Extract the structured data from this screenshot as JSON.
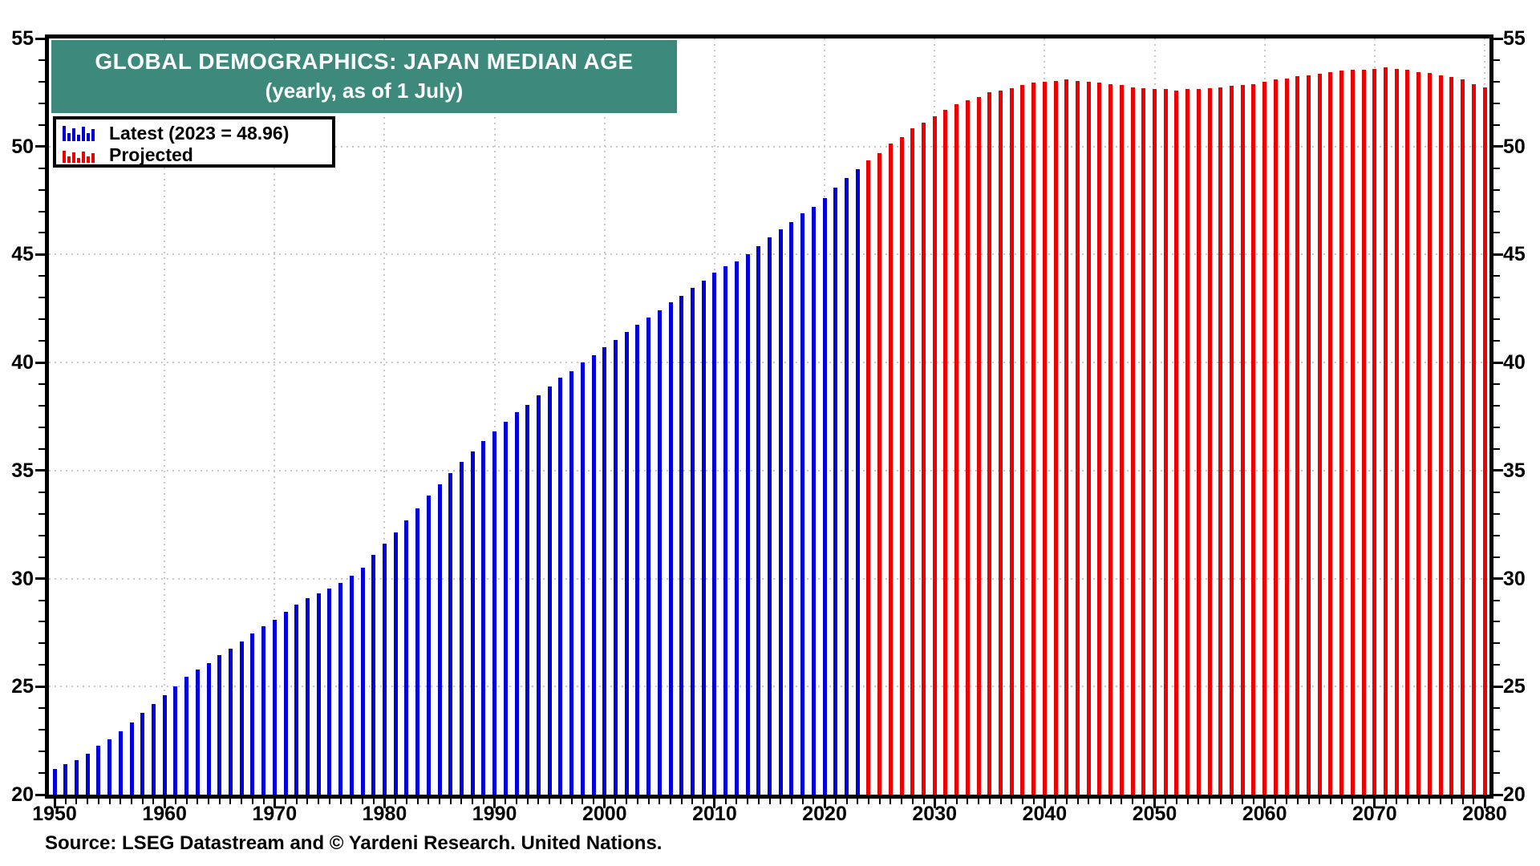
{
  "header": {
    "title": "GLOBAL DEMOGRAPHICS: JAPAN MEDIAN AGE",
    "subtitle": "(yearly, as of 1 July)"
  },
  "legend": {
    "items": [
      {
        "label": "Latest (2023 = 48.96)",
        "color": "#0000dd",
        "icon": "mini-bar-chart-icon"
      },
      {
        "label": "Projected",
        "color": "#ee0000",
        "icon": "mini-bar-chart-icon"
      }
    ]
  },
  "source": "Source: LSEG Datastream and © Yardeni Research. United Nations.",
  "colors": {
    "latest_bar": "#0000dd",
    "projected_bar": "#ee0000",
    "title_background": "#3d8a7d",
    "title_text": "#ffffff",
    "gridline": "#c8c8c8",
    "axis": "#000000"
  },
  "chart_data": {
    "type": "bar",
    "title": "GLOBAL DEMOGRAPHICS: JAPAN MEDIAN AGE",
    "subtitle": "(yearly, as of 1 July)",
    "frequency": "yearly",
    "x_start_year": 1950,
    "x_end_year": 2080,
    "x_major_interval": 10,
    "x_tick_labels": [
      "1950",
      "1960",
      "1970",
      "1980",
      "1990",
      "2000",
      "2010",
      "2020",
      "2030",
      "2040",
      "2050",
      "2060",
      "2070",
      "2080"
    ],
    "ylim": [
      20,
      55
    ],
    "y_major_interval": 5,
    "y_minor_interval": 1,
    "y_tick_labels": [
      "20",
      "25",
      "30",
      "35",
      "40",
      "45",
      "50",
      "55"
    ],
    "grid": true,
    "legend_position": "top-left",
    "series": [
      {
        "name": "Latest (2023 = 48.96)",
        "color": "#0000dd",
        "start_year": 1950,
        "values": [
          21.2,
          21.4,
          21.6,
          21.9,
          22.25,
          22.55,
          22.95,
          23.35,
          23.8,
          24.2,
          24.6,
          25.0,
          25.45,
          25.8,
          26.1,
          26.45,
          26.75,
          27.1,
          27.45,
          27.8,
          28.1,
          28.45,
          28.8,
          29.1,
          29.3,
          29.55,
          29.8,
          30.15,
          30.5,
          31.1,
          31.6,
          32.15,
          32.7,
          33.25,
          33.85,
          34.35,
          34.9,
          35.4,
          35.9,
          36.35,
          36.8,
          37.25,
          37.7,
          38.05,
          38.5,
          38.9,
          39.3,
          39.6,
          40.0,
          40.35,
          40.7,
          41.05,
          41.4,
          41.75,
          42.1,
          42.4,
          42.8,
          43.1,
          43.45,
          43.8,
          44.15,
          44.45,
          44.7,
          45.0,
          45.4,
          45.8,
          46.15,
          46.5,
          46.9,
          47.2,
          47.6,
          48.1,
          48.55,
          48.96
        ]
      },
      {
        "name": "Projected",
        "color": "#ee0000",
        "start_year": 2024,
        "values": [
          49.35,
          49.7,
          50.15,
          50.45,
          50.85,
          51.1,
          51.4,
          51.7,
          51.95,
          52.15,
          52.3,
          52.5,
          52.6,
          52.7,
          52.85,
          52.95,
          53.0,
          53.05,
          53.1,
          53.05,
          53.0,
          52.95,
          52.9,
          52.85,
          52.75,
          52.7,
          52.65,
          52.65,
          52.6,
          52.65,
          52.65,
          52.7,
          52.75,
          52.8,
          52.85,
          52.9,
          53.0,
          53.1,
          53.15,
          53.25,
          53.3,
          53.35,
          53.45,
          53.5,
          53.55,
          53.55,
          53.6,
          53.65,
          53.6,
          53.55,
          53.45,
          53.4,
          53.3,
          53.2,
          53.1,
          52.9,
          52.75
        ]
      }
    ],
    "annotations": {
      "latest_year": 2023,
      "latest_value": 48.96
    }
  }
}
